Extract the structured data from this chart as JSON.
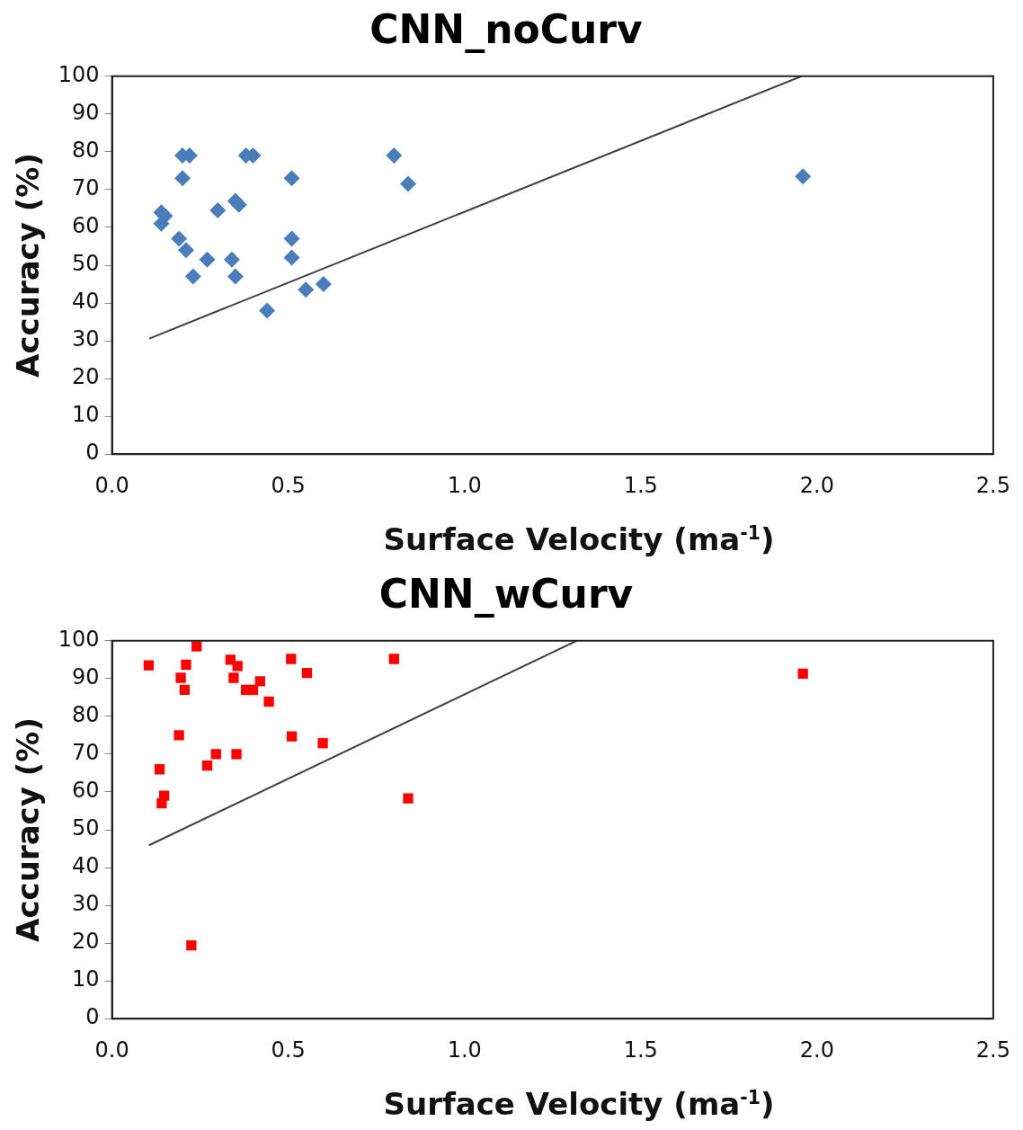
{
  "chart_data": [
    {
      "type": "scatter",
      "title": "CNN_noCurv",
      "xlabel": "Surface Velocity (ma$^{-1}$)",
      "ylabel": "Accuracy (%)",
      "marker": "diamond",
      "xlim": [
        0,
        2.5
      ],
      "xticks": [
        {
          "value": 0,
          "label": "0.0"
        },
        {
          "value": 0.5,
          "label": "0.5"
        },
        {
          "value": 1,
          "label": "1.0"
        },
        {
          "value": 1.5,
          "label": "1.5"
        },
        {
          "value": 2,
          "label": "2.0"
        },
        {
          "value": 2.5,
          "label": "2.5"
        }
      ],
      "ylim": [
        0,
        100
      ],
      "yticks": [
        0,
        10,
        20,
        30,
        40,
        50,
        60,
        70,
        80,
        90,
        100
      ],
      "series": [
        {
          "color": "#4a7ebb",
          "x": [
            0.14,
            0.15,
            0.14,
            0.2,
            0.22,
            0.2,
            0.19,
            0.21,
            0.23,
            0.27,
            0.3,
            0.34,
            0.35,
            0.36,
            0.35,
            0.38,
            0.4,
            0.44,
            0.51,
            0.51,
            0.51,
            0.55,
            0.6,
            0.8,
            0.84,
            1.96
          ],
          "values": [
            64,
            63,
            61,
            79,
            79,
            73,
            57,
            54,
            47,
            51.5,
            64.5,
            51.5,
            67,
            66,
            47,
            79,
            79,
            38,
            73,
            57,
            52,
            43.5,
            45,
            79,
            71.5,
            73.5
          ]
        },
        {
          "type": "line",
          "marker": "none",
          "color": "#404040",
          "x": [
            0.106,
            1.956
          ],
          "values": [
            30.6,
            100
          ]
        }
      ]
    },
    {
      "type": "scatter",
      "title": "CNN_wCurv",
      "xlabel": "Surface Velocity (ma$^{-1}$)",
      "ylabel": "Accuracy (%)",
      "marker": "square",
      "xlim": [
        0,
        2.5
      ],
      "xticks": [
        {
          "value": 0,
          "label": "0.0"
        },
        {
          "value": 0.5,
          "label": "0.5"
        },
        {
          "value": 1,
          "label": "1.0"
        },
        {
          "value": 1.5,
          "label": "1.5"
        },
        {
          "value": 2,
          "label": "2.0"
        },
        {
          "value": 2.5,
          "label": "2.5"
        }
      ],
      "ylim": [
        0,
        100
      ],
      "yticks": [
        0,
        10,
        20,
        30,
        40,
        50,
        60,
        70,
        80,
        90,
        100
      ],
      "series": [
        {
          "color": "#ff0000",
          "x": [
            0.104,
            0.24,
            0.21,
            0.195,
            0.206,
            0.19,
            0.135,
            0.148,
            0.141,
            0.225,
            0.27,
            0.295,
            0.353,
            0.336,
            0.356,
            0.345,
            0.38,
            0.4,
            0.42,
            0.445,
            0.508,
            0.553,
            0.51,
            0.598,
            0.8,
            0.84,
            1.96
          ],
          "values": [
            93.5,
            98.5,
            93.7,
            90.2,
            87,
            75,
            66,
            59,
            57,
            19.4,
            67,
            70,
            70,
            95,
            93.3,
            90.2,
            87,
            87,
            89.3,
            83.9,
            95.2,
            91.5,
            74.7,
            72.9,
            95.2,
            58.3,
            91.3
          ]
        },
        {
          "type": "line",
          "marker": "none",
          "color": "#404040",
          "x": [
            0.105,
            1.318
          ],
          "values": [
            45.9,
            100
          ]
        }
      ]
    }
  ]
}
